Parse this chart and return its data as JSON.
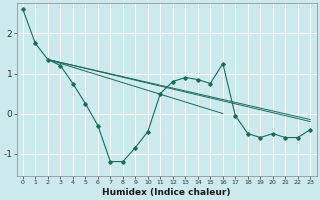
{
  "xlabel": "Humidex (Indice chaleur)",
  "bg_color": "#cce9ee",
  "grid_color": "#ffffff",
  "line_color": "#1a6b5a",
  "xlim": [
    -0.5,
    23.5
  ],
  "ylim": [
    -1.55,
    2.75
  ],
  "line1_x": [
    0,
    1,
    2,
    3,
    4,
    5,
    6,
    7,
    8,
    9,
    10,
    11,
    12,
    13,
    14,
    15,
    16,
    17,
    18,
    19,
    20,
    21,
    22,
    23
  ],
  "line1_y": [
    2.6,
    1.75,
    1.35,
    1.2,
    0.75,
    0.25,
    -0.3,
    -1.2,
    -1.2,
    -0.85,
    -0.45,
    0.5,
    0.8,
    0.9,
    0.85,
    0.75,
    1.25,
    -0.05,
    -0.5,
    -0.6,
    -0.5,
    -0.6,
    -0.6,
    -0.4
  ],
  "trend1_x": [
    2,
    23
  ],
  "trend1_y": [
    1.35,
    -0.15
  ],
  "trend2_x": [
    2,
    23
  ],
  "trend2_y": [
    1.35,
    -0.2
  ],
  "trend3_x": [
    2,
    16
  ],
  "trend3_y": [
    1.35,
    0.0
  ],
  "ytick_values": [
    -1,
    0,
    1,
    2
  ],
  "xtick_labels": [
    "0",
    "1",
    "2",
    "3",
    "4",
    "5",
    "6",
    "7",
    "8",
    "9",
    "10",
    "11",
    "12",
    "13",
    "14",
    "15",
    "16",
    "17",
    "18",
    "19",
    "20",
    "21",
    "22",
    "23"
  ]
}
